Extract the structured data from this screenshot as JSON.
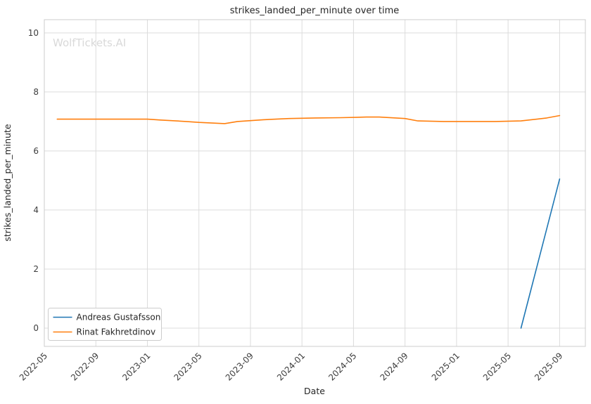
{
  "watermark": "WolfTickets.AI",
  "chart_data": {
    "type": "line",
    "title": "strikes_landed_per_minute over time",
    "xlabel": "Date",
    "ylabel": "strikes_landed_per_minute",
    "x_ticks": [
      "2022-05",
      "2022-09",
      "2023-01",
      "2023-05",
      "2023-09",
      "2024-01",
      "2024-05",
      "2024-09",
      "2025-01",
      "2025-05",
      "2025-09"
    ],
    "y_ticks": [
      0,
      2,
      4,
      6,
      8,
      10
    ],
    "xlim": [
      "2022-05",
      "2025-11"
    ],
    "ylim": [
      -0.62,
      10.45
    ],
    "grid": true,
    "grid_color": "#dcdcdc",
    "spine_color": "#cccccc",
    "legend_position": "lower left",
    "series": [
      {
        "name": "Andreas Gustafsson",
        "color": "#1f77b4",
        "points": [
          [
            "2025-06",
            0.0
          ],
          [
            "2025-09",
            5.05
          ]
        ]
      },
      {
        "name": "Rinat Fakhretdinov",
        "color": "#ff7f0e",
        "points": [
          [
            "2022-06",
            7.08
          ],
          [
            "2022-09",
            7.08
          ],
          [
            "2022-11",
            7.08
          ],
          [
            "2023-01",
            7.08
          ],
          [
            "2023-02",
            7.05
          ],
          [
            "2023-04",
            7.0
          ],
          [
            "2023-05",
            6.97
          ],
          [
            "2023-07",
            6.93
          ],
          [
            "2023-08",
            7.0
          ],
          [
            "2023-10",
            7.06
          ],
          [
            "2023-12",
            7.1
          ],
          [
            "2024-02",
            7.12
          ],
          [
            "2024-04",
            7.13
          ],
          [
            "2024-06",
            7.15
          ],
          [
            "2024-07",
            7.15
          ],
          [
            "2024-09",
            7.1
          ],
          [
            "2024-10",
            7.02
          ],
          [
            "2024-12",
            7.0
          ],
          [
            "2025-02",
            7.0
          ],
          [
            "2025-04",
            7.0
          ],
          [
            "2025-06",
            7.02
          ],
          [
            "2025-08",
            7.12
          ],
          [
            "2025-09",
            7.2
          ]
        ]
      }
    ]
  }
}
